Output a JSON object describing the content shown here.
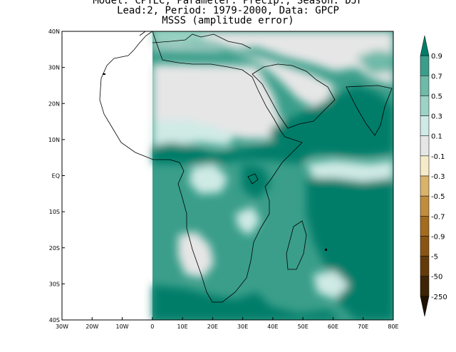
{
  "title": {
    "line1": "Model: CPTEC, Parameter: Precip., Season: DJF",
    "line2": "Lead:2, Period: 1979-2000, Data: GPCP",
    "line3": "MSSS (amplitude error)"
  },
  "map": {
    "lat_labels": [
      "40N",
      "30N",
      "20N",
      "10N",
      "EQ",
      "10S",
      "20S",
      "30S",
      "40S"
    ],
    "lon_labels": [
      "30W",
      "20W",
      "10W",
      "0",
      "10E",
      "20E",
      "30E",
      "40E",
      "50E",
      "60E",
      "70E",
      "80E"
    ],
    "lat_range": [
      -40,
      40
    ],
    "lon_range": [
      -30,
      80
    ],
    "data_coverage_lon_start": 0,
    "no_data_color": "#e6e6e6"
  },
  "colorbar": {
    "labels": [
      "0.9",
      "0.7",
      "0.5",
      "0.3",
      "0.1",
      "-0.1",
      "-0.3",
      "-0.5",
      "-0.7",
      "-0.9",
      "-5",
      "-50",
      "-250"
    ],
    "colors": [
      "#017d69",
      "#3a9e8a",
      "#6fbaa9",
      "#9cd3c4",
      "#cfeae5",
      "#e6e6e6",
      "#f6ebc8",
      "#d9b36a",
      "#c08d3e",
      "#a46c1f",
      "#8a5514",
      "#653b0c",
      "#3d2407",
      "#1e1203"
    ]
  }
}
